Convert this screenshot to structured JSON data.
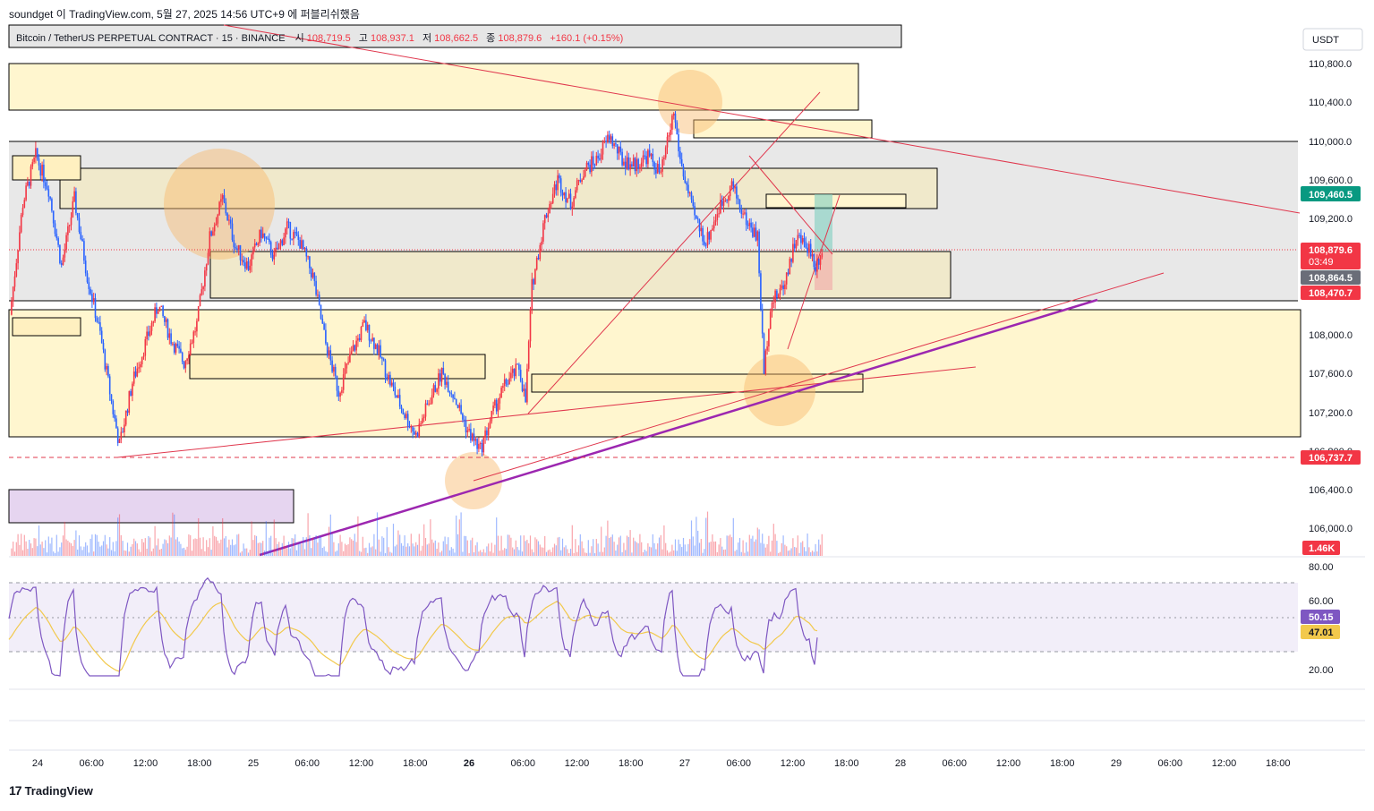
{
  "header": {
    "credit": "soundget 이 TradingView.com, 5월 27, 2025 14:56 UTC+9 에 퍼블리쉬했음",
    "symbol": "Bitcoin / TetherUS PERPETUAL CONTRACT · 15 · BINANCE",
    "open_label": "시",
    "open": "108,719.5",
    "high_label": "고",
    "high": "108,937.1",
    "low_label": "저",
    "low": "108,662.5",
    "close_label": "종",
    "close": "108,879.6",
    "change": "+160.1 (+0.15%)"
  },
  "axis": {
    "currency": "USDT",
    "price_ticks": [
      "110,800.0",
      "110,400.0",
      "110,000.0",
      "109,600.0",
      "109,200.0",
      "108,000.0",
      "107,600.0",
      "107,200.0",
      "106,800.0",
      "106,400.0",
      "106,000.0"
    ],
    "rsi_ticks": [
      "80.00",
      "60.00",
      "20.00"
    ],
    "time_ticks": [
      "24",
      "06:00",
      "12:00",
      "18:00",
      "25",
      "06:00",
      "12:00",
      "18:00",
      "26",
      "06:00",
      "12:00",
      "18:00",
      "27",
      "06:00",
      "12:00",
      "18:00",
      "28",
      "06:00",
      "12:00",
      "18:00",
      "29",
      "06:00",
      "12:00",
      "18:00"
    ]
  },
  "badges": {
    "level_green": "109,460.5",
    "last_price": "108,879.6",
    "countdown": "03:49",
    "level_gray": "108,864.5",
    "level_red": "108,470.7",
    "level_low": "106,737.7",
    "volume": "1.46K",
    "rsi_value": "50.15",
    "rsi_ma": "47.01"
  },
  "colors": {
    "up": "#f23645",
    "down": "#2962ff",
    "zone_yellow": "#fff3c4",
    "zone_gray": "#e6e6e6",
    "trend_red": "#e0384e",
    "trend_purple": "#9c27b0",
    "rsi_line": "#7e57c2",
    "rsi_ma": "#f2c94c",
    "badge_green": "#089981",
    "badge_red": "#f23645"
  },
  "footer": {
    "brand": "TradingView"
  },
  "chart_data": {
    "type": "candlestick",
    "symbol": "Bitcoin / TetherUS PERPETUAL CONTRACT",
    "timeframe": "15",
    "exchange": "BINANCE",
    "price_axis": {
      "min": 106000,
      "max": 110800
    },
    "rsi_axis": {
      "levels": [
        80,
        60,
        20
      ]
    },
    "time_axis": [
      "24",
      "06:00",
      "12:00",
      "18:00",
      "25",
      "06:00",
      "12:00",
      "18:00",
      "26",
      "06:00",
      "12:00",
      "18:00",
      "27",
      "06:00",
      "12:00",
      "18:00",
      "28",
      "06:00",
      "12:00",
      "18:00",
      "29",
      "06:00",
      "12:00",
      "18:00"
    ],
    "price_path": [
      [
        0,
        108200
      ],
      [
        2,
        109350
      ],
      [
        4,
        109850
      ],
      [
        6,
        109500
      ],
      [
        8,
        108700
      ],
      [
        10,
        109400
      ],
      [
        12,
        108600
      ],
      [
        14,
        108000
      ],
      [
        16,
        107200
      ],
      [
        17,
        106850
      ],
      [
        19,
        107500
      ],
      [
        21,
        107900
      ],
      [
        23,
        108300
      ],
      [
        25,
        107950
      ],
      [
        27,
        107700
      ],
      [
        29,
        108100
      ],
      [
        31,
        109000
      ],
      [
        33,
        109400
      ],
      [
        35,
        108900
      ],
      [
        37,
        108700
      ],
      [
        39,
        109050
      ],
      [
        41,
        108800
      ],
      [
        43,
        109100
      ],
      [
        45,
        108950
      ],
      [
        47,
        108600
      ],
      [
        49,
        107900
      ],
      [
        51,
        107400
      ],
      [
        53,
        107800
      ],
      [
        55,
        108100
      ],
      [
        57,
        107850
      ],
      [
        59,
        107500
      ],
      [
        61,
        107200
      ],
      [
        63,
        106950
      ],
      [
        65,
        107300
      ],
      [
        67,
        107600
      ],
      [
        69,
        107350
      ],
      [
        71,
        107000
      ],
      [
        73,
        106800
      ],
      [
        75,
        107200
      ],
      [
        77,
        107500
      ],
      [
        79,
        107650
      ],
      [
        80,
        107300
      ],
      [
        81,
        108500
      ],
      [
        83,
        109200
      ],
      [
        85,
        109600
      ],
      [
        87,
        109350
      ],
      [
        89,
        109700
      ],
      [
        91,
        109800
      ],
      [
        93,
        110050
      ],
      [
        95,
        109800
      ],
      [
        97,
        109750
      ],
      [
        99,
        109850
      ],
      [
        101,
        109650
      ],
      [
        103,
        110300
      ],
      [
        104,
        109800
      ],
      [
        106,
        109250
      ],
      [
        108,
        108950
      ],
      [
        110,
        109300
      ],
      [
        112,
        109550
      ],
      [
        114,
        109200
      ],
      [
        116,
        109000
      ],
      [
        117,
        107600
      ],
      [
        118,
        108300
      ],
      [
        120,
        108500
      ],
      [
        122,
        109000
      ],
      [
        124,
        108900
      ],
      [
        125,
        108700
      ],
      [
        126,
        108880
      ]
    ],
    "levels": {
      "current": 108879.6,
      "zone_top_marker": 109460.5,
      "dashed_low": 106737.7,
      "marker_108864": 108864.5,
      "marker_108470": 108470.7
    }
  }
}
